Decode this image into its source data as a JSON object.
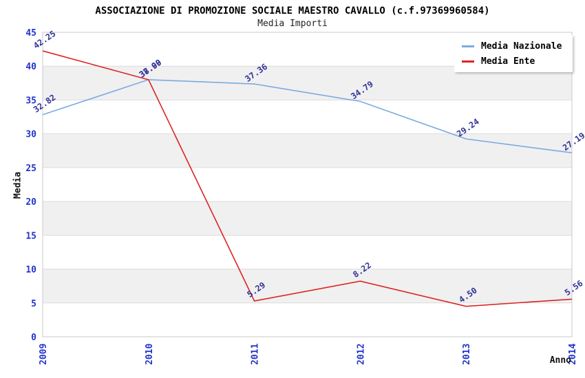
{
  "header": {
    "title": "ASSOCIAZIONE DI PROMOZIONE SOCIALE MAESTRO CAVALLO (c.f.97369960584)",
    "subtitle": "Media Importi"
  },
  "chart_data": {
    "type": "line",
    "title": "ASSOCIAZIONE DI PROMOZIONE SOCIALE MAESTRO CAVALLO (c.f.97369960584)",
    "subtitle": "Media Importi",
    "xlabel": "Anno",
    "ylabel": "Media",
    "x": [
      "2009",
      "2010",
      "2011",
      "2012",
      "2013",
      "2014"
    ],
    "ylim": [
      0,
      45
    ],
    "ytick_step": 5,
    "ytick_labels": [
      "0",
      "5",
      "10",
      "15",
      "20",
      "25",
      "30",
      "35",
      "40",
      "45"
    ],
    "grid": "alternating-horizontal-bands",
    "legend_position": "top-right",
    "series": [
      {
        "name": "Media Nazionale",
        "color": "#7aabdf",
        "values": [
          32.82,
          38.0,
          37.36,
          34.79,
          29.24,
          27.19
        ],
        "labels": [
          "32.82",
          "38.00",
          "37.36",
          "34.79",
          "29.24",
          "27.19"
        ]
      },
      {
        "name": "Media Ente",
        "color": "#dd2222",
        "values": [
          42.25,
          37.99,
          5.29,
          8.22,
          4.5,
          5.56
        ],
        "labels": [
          "42.25",
          "37.99",
          "5.29",
          "8.22",
          "4.50",
          "5.56"
        ]
      }
    ]
  },
  "colors": {
    "band_gray": "#f0f0f0",
    "band_white": "#ffffff",
    "gridline": "#dcdcdc",
    "plot_border": "#c8c8c8",
    "tick_label": "#2233cc",
    "data_label": "#333399",
    "title": "#000000"
  }
}
